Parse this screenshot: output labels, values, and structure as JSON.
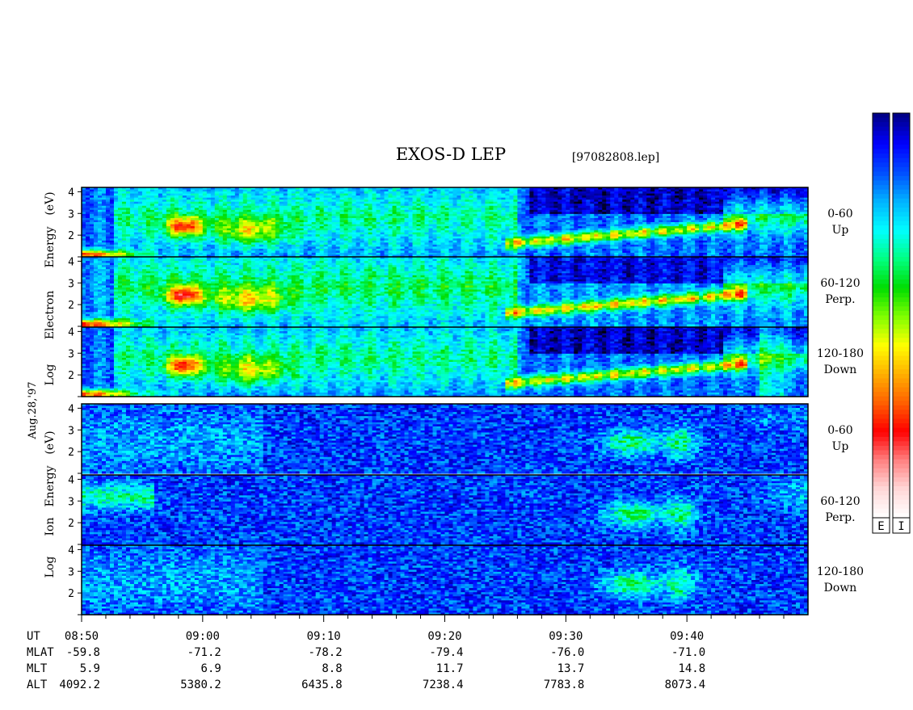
{
  "chart_data": {
    "type": "heatmap",
    "title": "EXOS-D LEP",
    "file_label": "[97082808.lep]",
    "date_label": "Aug.28,'97",
    "x_ticks": [
      "08:50",
      "09:00",
      "09:10",
      "09:20",
      "09:30",
      "09:40"
    ],
    "y_ticks": [
      "4",
      "3",
      "2"
    ],
    "groups": [
      {
        "name": "electron",
        "ylabel_lines": [
          "Log",
          "Electron",
          "Energy",
          "(eV)"
        ],
        "panels": [
          {
            "pitch_label": "0-60",
            "dir_label": "Up"
          },
          {
            "pitch_label": "60-120",
            "dir_label": "Perp."
          },
          {
            "pitch_label": "120-180",
            "dir_label": "Down"
          }
        ]
      },
      {
        "name": "ion",
        "ylabel_lines": [
          "Log",
          "Ion",
          "Energy",
          "(eV)"
        ],
        "panels": [
          {
            "pitch_label": "0-60",
            "dir_label": "Up"
          },
          {
            "pitch_label": "60-120",
            "dir_label": "Perp."
          },
          {
            "pitch_label": "120-180",
            "dir_label": "Down"
          }
        ]
      }
    ],
    "orbit": {
      "labels": [
        "UT",
        "MLAT",
        "MLT",
        "ALT"
      ],
      "mlat": [
        "-59.8",
        "-71.2",
        "-78.2",
        "-79.4",
        "-76.0",
        "-71.0"
      ],
      "mlt": [
        "5.9",
        "6.9",
        "8.8",
        "11.7",
        "13.7",
        "14.8"
      ],
      "alt": [
        "4092.2",
        "5380.2",
        "6435.8",
        "7238.4",
        "7783.8",
        "8073.4"
      ]
    },
    "colorbars": [
      {
        "label": "E"
      },
      {
        "label": "I"
      }
    ],
    "colors": [
      "#000000",
      "#00008b",
      "#0000ff",
      "#0050ff",
      "#00b4ff",
      "#00ffff",
      "#00ff80",
      "#00dd00",
      "#80ff00",
      "#ffff00",
      "#ffb000",
      "#ff6000",
      "#ff0000",
      "#ff8080",
      "#ffd8d8",
      "#ffffff"
    ]
  }
}
